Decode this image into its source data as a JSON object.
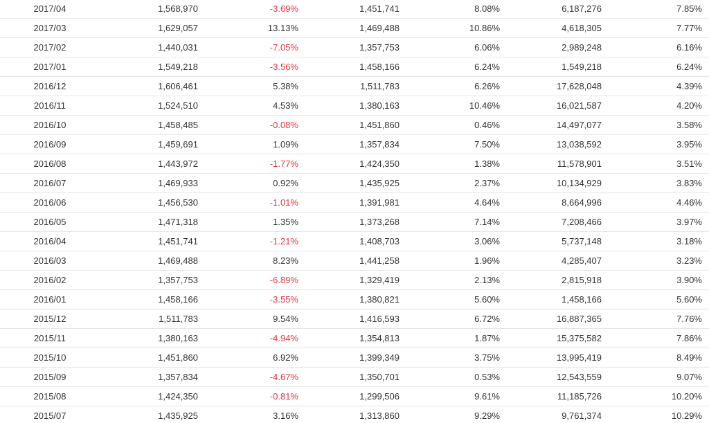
{
  "colors": {
    "negative": "#e8363f",
    "text": "#333333",
    "row_border": "#e6e6e6"
  },
  "rows": [
    {
      "month": "2017/04",
      "value": "1,568,970",
      "mom_change": "-3.69%",
      "prev_year": "1,451,741",
      "yoy_change": "8.08%",
      "ytd_total": "6,187,276",
      "ytd_change": "7.85%"
    },
    {
      "month": "2017/03",
      "value": "1,629,057",
      "mom_change": "13.13%",
      "prev_year": "1,469,488",
      "yoy_change": "10.86%",
      "ytd_total": "4,618,305",
      "ytd_change": "7.77%"
    },
    {
      "month": "2017/02",
      "value": "1,440,031",
      "mom_change": "-7.05%",
      "prev_year": "1,357,753",
      "yoy_change": "6.06%",
      "ytd_total": "2,989,248",
      "ytd_change": "6.16%"
    },
    {
      "month": "2017/01",
      "value": "1,549,218",
      "mom_change": "-3.56%",
      "prev_year": "1,458,166",
      "yoy_change": "6.24%",
      "ytd_total": "1,549,218",
      "ytd_change": "6.24%"
    },
    {
      "month": "2016/12",
      "value": "1,606,461",
      "mom_change": "5.38%",
      "prev_year": "1,511,783",
      "yoy_change": "6.26%",
      "ytd_total": "17,628,048",
      "ytd_change": "4.39%"
    },
    {
      "month": "2016/11",
      "value": "1,524,510",
      "mom_change": "4.53%",
      "prev_year": "1,380,163",
      "yoy_change": "10.46%",
      "ytd_total": "16,021,587",
      "ytd_change": "4.20%"
    },
    {
      "month": "2016/10",
      "value": "1,458,485",
      "mom_change": "-0.08%",
      "prev_year": "1,451,860",
      "yoy_change": "0.46%",
      "ytd_total": "14,497,077",
      "ytd_change": "3.58%"
    },
    {
      "month": "2016/09",
      "value": "1,459,691",
      "mom_change": "1.09%",
      "prev_year": "1,357,834",
      "yoy_change": "7.50%",
      "ytd_total": "13,038,592",
      "ytd_change": "3.95%"
    },
    {
      "month": "2016/08",
      "value": "1,443,972",
      "mom_change": "-1.77%",
      "prev_year": "1,424,350",
      "yoy_change": "1.38%",
      "ytd_total": "11,578,901",
      "ytd_change": "3.51%"
    },
    {
      "month": "2016/07",
      "value": "1,469,933",
      "mom_change": "0.92%",
      "prev_year": "1,435,925",
      "yoy_change": "2.37%",
      "ytd_total": "10,134,929",
      "ytd_change": "3.83%"
    },
    {
      "month": "2016/06",
      "value": "1,456,530",
      "mom_change": "-1.01%",
      "prev_year": "1,391,981",
      "yoy_change": "4.64%",
      "ytd_total": "8,664,996",
      "ytd_change": "4.46%"
    },
    {
      "month": "2016/05",
      "value": "1,471,318",
      "mom_change": "1.35%",
      "prev_year": "1,373,268",
      "yoy_change": "7.14%",
      "ytd_total": "7,208,466",
      "ytd_change": "3.97%"
    },
    {
      "month": "2016/04",
      "value": "1,451,741",
      "mom_change": "-1.21%",
      "prev_year": "1,408,703",
      "yoy_change": "3.06%",
      "ytd_total": "5,737,148",
      "ytd_change": "3.18%"
    },
    {
      "month": "2016/03",
      "value": "1,469,488",
      "mom_change": "8.23%",
      "prev_year": "1,441,258",
      "yoy_change": "1.96%",
      "ytd_total": "4,285,407",
      "ytd_change": "3.23%"
    },
    {
      "month": "2016/02",
      "value": "1,357,753",
      "mom_change": "-6.89%",
      "prev_year": "1,329,419",
      "yoy_change": "2.13%",
      "ytd_total": "2,815,918",
      "ytd_change": "3.90%"
    },
    {
      "month": "2016/01",
      "value": "1,458,166",
      "mom_change": "-3.55%",
      "prev_year": "1,380,821",
      "yoy_change": "5.60%",
      "ytd_total": "1,458,166",
      "ytd_change": "5.60%"
    },
    {
      "month": "2015/12",
      "value": "1,511,783",
      "mom_change": "9.54%",
      "prev_year": "1,416,593",
      "yoy_change": "6.72%",
      "ytd_total": "16,887,365",
      "ytd_change": "7.76%"
    },
    {
      "month": "2015/11",
      "value": "1,380,163",
      "mom_change": "-4.94%",
      "prev_year": "1,354,813",
      "yoy_change": "1.87%",
      "ytd_total": "15,375,582",
      "ytd_change": "7.86%"
    },
    {
      "month": "2015/10",
      "value": "1,451,860",
      "mom_change": "6.92%",
      "prev_year": "1,399,349",
      "yoy_change": "3.75%",
      "ytd_total": "13,995,419",
      "ytd_change": "8.49%"
    },
    {
      "month": "2015/09",
      "value": "1,357,834",
      "mom_change": "-4.67%",
      "prev_year": "1,350,701",
      "yoy_change": "0.53%",
      "ytd_total": "12,543,559",
      "ytd_change": "9.07%"
    },
    {
      "month": "2015/08",
      "value": "1,424,350",
      "mom_change": "-0.81%",
      "prev_year": "1,299,506",
      "yoy_change": "9.61%",
      "ytd_total": "11,185,726",
      "ytd_change": "10.20%"
    },
    {
      "month": "2015/07",
      "value": "1,435,925",
      "mom_change": "3.16%",
      "prev_year": "1,313,860",
      "yoy_change": "9.29%",
      "ytd_total": "9,761,374",
      "ytd_change": "10.29%"
    }
  ]
}
